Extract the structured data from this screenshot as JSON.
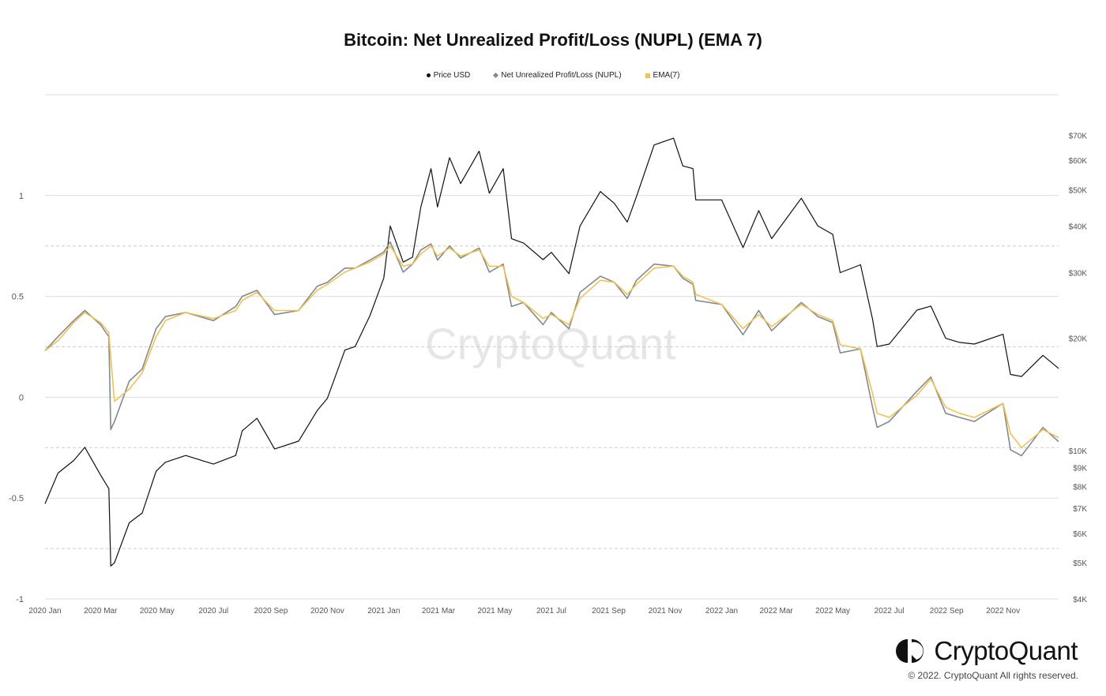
{
  "brand": {
    "name": "CryptoQuant",
    "copyright": "© 2022. CryptoQuant All rights reserved.",
    "watermark": "CryptoQuant"
  },
  "colors": {
    "price": "#111111",
    "nupl": "#7f8a96",
    "ema": "#f2c14e",
    "grid": "#cccccc"
  },
  "chart_data": {
    "type": "line",
    "title": "Bitcoin: Net Unrealized Profit/Loss (NUPL) (EMA 7)",
    "legend_placement": "top-center",
    "grid": true,
    "x_ticks": [
      "2020 Jan",
      "2020 Mar",
      "2020 May",
      "2020 Jul",
      "2020 Sep",
      "2020 Nov",
      "2021 Jan",
      "2021 Mar",
      "2021 May",
      "2021 Jul",
      "2021 Sep",
      "2021 Nov",
      "2022 Jan",
      "2022 Mar",
      "2022 May",
      "2022 Jul",
      "2022 Sep",
      "2022 Nov"
    ],
    "x_range": [
      "2020-01-01",
      "2022-12-31"
    ],
    "y_left": {
      "min": -1,
      "max": 1.5,
      "ticks": [
        -1,
        -0.5,
        0,
        0.5,
        1
      ],
      "tick_labels": [
        "-1",
        "-0.5",
        "0",
        "0.5",
        "1"
      ]
    },
    "y_right": {
      "scale": "log",
      "min": 4000,
      "max": 90000,
      "ticks": [
        4000,
        5000,
        6000,
        7000,
        8000,
        9000,
        10000,
        20000,
        30000,
        40000,
        50000,
        60000,
        70000
      ],
      "tick_labels": [
        "$4K",
        "$5K",
        "$6K",
        "$7K",
        "$8K",
        "$9K",
        "$10K",
        "$20K",
        "$30K",
        "$40K",
        "$50K",
        "$60K",
        "$70K"
      ]
    },
    "series": [
      {
        "name": "Price USD",
        "axis": "right",
        "color": "#111111",
        "points": [
          [
            "2020-01-01",
            7200
          ],
          [
            "2020-01-15",
            8700
          ],
          [
            "2020-02-01",
            9400
          ],
          [
            "2020-02-13",
            10200
          ],
          [
            "2020-03-01",
            8600
          ],
          [
            "2020-03-10",
            7900
          ],
          [
            "2020-03-12",
            4900
          ],
          [
            "2020-03-16",
            5000
          ],
          [
            "2020-04-01",
            6400
          ],
          [
            "2020-04-15",
            6800
          ],
          [
            "2020-04-30",
            8800
          ],
          [
            "2020-05-10",
            9300
          ],
          [
            "2020-06-01",
            9700
          ],
          [
            "2020-07-01",
            9200
          ],
          [
            "2020-07-25",
            9700
          ],
          [
            "2020-08-01",
            11300
          ],
          [
            "2020-08-17",
            12200
          ],
          [
            "2020-09-05",
            10100
          ],
          [
            "2020-10-01",
            10600
          ],
          [
            "2020-10-21",
            12800
          ],
          [
            "2020-11-01",
            13800
          ],
          [
            "2020-11-20",
            18600
          ],
          [
            "2020-12-01",
            19000
          ],
          [
            "2020-12-17",
            23000
          ],
          [
            "2021-01-01",
            29000
          ],
          [
            "2021-01-08",
            40000
          ],
          [
            "2021-01-22",
            32000
          ],
          [
            "2021-02-01",
            33000
          ],
          [
            "2021-02-10",
            45000
          ],
          [
            "2021-02-21",
            57000
          ],
          [
            "2021-02-28",
            45000
          ],
          [
            "2021-03-13",
            61000
          ],
          [
            "2021-03-25",
            52000
          ],
          [
            "2021-04-14",
            63500
          ],
          [
            "2021-04-25",
            49000
          ],
          [
            "2021-05-10",
            57000
          ],
          [
            "2021-05-19",
            37000
          ],
          [
            "2021-06-01",
            36000
          ],
          [
            "2021-06-22",
            32500
          ],
          [
            "2021-07-01",
            34000
          ],
          [
            "2021-07-20",
            29800
          ],
          [
            "2021-08-01",
            40000
          ],
          [
            "2021-08-23",
            49500
          ],
          [
            "2021-09-07",
            46000
          ],
          [
            "2021-09-21",
            41000
          ],
          [
            "2021-10-01",
            48000
          ],
          [
            "2021-10-20",
            66000
          ],
          [
            "2021-11-10",
            68800
          ],
          [
            "2021-11-20",
            58000
          ],
          [
            "2021-12-01",
            57000
          ],
          [
            "2021-12-04",
            47000
          ],
          [
            "2022-01-01",
            47000
          ],
          [
            "2022-01-24",
            35000
          ],
          [
            "2022-02-10",
            44000
          ],
          [
            "2022-02-24",
            37000
          ],
          [
            "2022-03-28",
            47500
          ],
          [
            "2022-04-15",
            40000
          ],
          [
            "2022-05-01",
            38000
          ],
          [
            "2022-05-09",
            30000
          ],
          [
            "2022-05-31",
            31500
          ],
          [
            "2022-06-13",
            22500
          ],
          [
            "2022-06-18",
            19000
          ],
          [
            "2022-07-01",
            19300
          ],
          [
            "2022-07-31",
            23800
          ],
          [
            "2022-08-15",
            24400
          ],
          [
            "2022-08-31",
            20000
          ],
          [
            "2022-09-15",
            19500
          ],
          [
            "2022-10-01",
            19300
          ],
          [
            "2022-11-01",
            20500
          ],
          [
            "2022-11-09",
            16000
          ],
          [
            "2022-11-21",
            15800
          ],
          [
            "2022-12-14",
            18000
          ],
          [
            "2022-12-31",
            16600
          ]
        ]
      },
      {
        "name": "Net Unrealized Profit/Loss (NUPL)",
        "axis": "left",
        "color": "#7f8a96",
        "points": [
          [
            "2020-01-01",
            0.23
          ],
          [
            "2020-01-15",
            0.3
          ],
          [
            "2020-02-01",
            0.38
          ],
          [
            "2020-02-13",
            0.43
          ],
          [
            "2020-03-01",
            0.36
          ],
          [
            "2020-03-10",
            0.3
          ],
          [
            "2020-03-12",
            -0.16
          ],
          [
            "2020-03-16",
            -0.12
          ],
          [
            "2020-04-01",
            0.08
          ],
          [
            "2020-04-15",
            0.14
          ],
          [
            "2020-04-30",
            0.34
          ],
          [
            "2020-05-10",
            0.4
          ],
          [
            "2020-06-01",
            0.42
          ],
          [
            "2020-07-01",
            0.38
          ],
          [
            "2020-07-25",
            0.45
          ],
          [
            "2020-08-01",
            0.5
          ],
          [
            "2020-08-17",
            0.53
          ],
          [
            "2020-09-05",
            0.41
          ],
          [
            "2020-10-01",
            0.43
          ],
          [
            "2020-10-21",
            0.55
          ],
          [
            "2020-11-01",
            0.57
          ],
          [
            "2020-11-20",
            0.64
          ],
          [
            "2020-12-01",
            0.64
          ],
          [
            "2020-12-17",
            0.68
          ],
          [
            "2021-01-01",
            0.72
          ],
          [
            "2021-01-08",
            0.77
          ],
          [
            "2021-01-22",
            0.62
          ],
          [
            "2021-02-01",
            0.66
          ],
          [
            "2021-02-10",
            0.73
          ],
          [
            "2021-02-21",
            0.76
          ],
          [
            "2021-02-28",
            0.68
          ],
          [
            "2021-03-13",
            0.75
          ],
          [
            "2021-03-25",
            0.69
          ],
          [
            "2021-04-14",
            0.74
          ],
          [
            "2021-04-25",
            0.62
          ],
          [
            "2021-05-10",
            0.66
          ],
          [
            "2021-05-19",
            0.45
          ],
          [
            "2021-06-01",
            0.47
          ],
          [
            "2021-06-22",
            0.36
          ],
          [
            "2021-07-01",
            0.42
          ],
          [
            "2021-07-20",
            0.34
          ],
          [
            "2021-08-01",
            0.52
          ],
          [
            "2021-08-23",
            0.6
          ],
          [
            "2021-09-07",
            0.57
          ],
          [
            "2021-09-21",
            0.49
          ],
          [
            "2021-10-01",
            0.58
          ],
          [
            "2021-10-20",
            0.66
          ],
          [
            "2021-11-10",
            0.65
          ],
          [
            "2021-11-20",
            0.59
          ],
          [
            "2021-12-01",
            0.56
          ],
          [
            "2021-12-04",
            0.48
          ],
          [
            "2022-01-01",
            0.46
          ],
          [
            "2022-01-24",
            0.31
          ],
          [
            "2022-02-10",
            0.43
          ],
          [
            "2022-02-24",
            0.33
          ],
          [
            "2022-03-28",
            0.47
          ],
          [
            "2022-04-15",
            0.4
          ],
          [
            "2022-05-01",
            0.37
          ],
          [
            "2022-05-09",
            0.22
          ],
          [
            "2022-05-31",
            0.24
          ],
          [
            "2022-06-13",
            -0.05
          ],
          [
            "2022-06-18",
            -0.15
          ],
          [
            "2022-07-01",
            -0.12
          ],
          [
            "2022-07-31",
            0.03
          ],
          [
            "2022-08-15",
            0.1
          ],
          [
            "2022-08-31",
            -0.08
          ],
          [
            "2022-09-15",
            -0.1
          ],
          [
            "2022-10-01",
            -0.12
          ],
          [
            "2022-11-01",
            -0.03
          ],
          [
            "2022-11-09",
            -0.26
          ],
          [
            "2022-11-21",
            -0.29
          ],
          [
            "2022-12-14",
            -0.15
          ],
          [
            "2022-12-31",
            -0.22
          ]
        ]
      },
      {
        "name": "EMA(7)",
        "axis": "left",
        "color": "#f2c14e",
        "points": [
          [
            "2020-01-01",
            0.23
          ],
          [
            "2020-01-15",
            0.28
          ],
          [
            "2020-02-01",
            0.37
          ],
          [
            "2020-02-13",
            0.42
          ],
          [
            "2020-03-01",
            0.37
          ],
          [
            "2020-03-10",
            0.32
          ],
          [
            "2020-03-12",
            0.2
          ],
          [
            "2020-03-16",
            -0.02
          ],
          [
            "2020-04-01",
            0.04
          ],
          [
            "2020-04-15",
            0.12
          ],
          [
            "2020-04-30",
            0.3
          ],
          [
            "2020-05-10",
            0.38
          ],
          [
            "2020-06-01",
            0.42
          ],
          [
            "2020-07-01",
            0.39
          ],
          [
            "2020-07-25",
            0.43
          ],
          [
            "2020-08-01",
            0.48
          ],
          [
            "2020-08-17",
            0.52
          ],
          [
            "2020-09-05",
            0.43
          ],
          [
            "2020-10-01",
            0.43
          ],
          [
            "2020-10-21",
            0.53
          ],
          [
            "2020-11-01",
            0.56
          ],
          [
            "2020-11-20",
            0.62
          ],
          [
            "2020-12-01",
            0.64
          ],
          [
            "2020-12-17",
            0.67
          ],
          [
            "2021-01-01",
            0.71
          ],
          [
            "2021-01-08",
            0.75
          ],
          [
            "2021-01-22",
            0.65
          ],
          [
            "2021-02-01",
            0.66
          ],
          [
            "2021-02-10",
            0.71
          ],
          [
            "2021-02-21",
            0.75
          ],
          [
            "2021-02-28",
            0.7
          ],
          [
            "2021-03-13",
            0.74
          ],
          [
            "2021-03-25",
            0.7
          ],
          [
            "2021-04-14",
            0.73
          ],
          [
            "2021-04-25",
            0.65
          ],
          [
            "2021-05-10",
            0.65
          ],
          [
            "2021-05-19",
            0.5
          ],
          [
            "2021-06-01",
            0.47
          ],
          [
            "2021-06-22",
            0.39
          ],
          [
            "2021-07-01",
            0.41
          ],
          [
            "2021-07-20",
            0.36
          ],
          [
            "2021-08-01",
            0.49
          ],
          [
            "2021-08-23",
            0.58
          ],
          [
            "2021-09-07",
            0.57
          ],
          [
            "2021-09-21",
            0.51
          ],
          [
            "2021-10-01",
            0.56
          ],
          [
            "2021-10-20",
            0.64
          ],
          [
            "2021-11-10",
            0.65
          ],
          [
            "2021-11-20",
            0.6
          ],
          [
            "2021-12-01",
            0.57
          ],
          [
            "2021-12-04",
            0.51
          ],
          [
            "2022-01-01",
            0.46
          ],
          [
            "2022-01-24",
            0.34
          ],
          [
            "2022-02-10",
            0.41
          ],
          [
            "2022-02-24",
            0.35
          ],
          [
            "2022-03-28",
            0.46
          ],
          [
            "2022-04-15",
            0.41
          ],
          [
            "2022-05-01",
            0.38
          ],
          [
            "2022-05-09",
            0.26
          ],
          [
            "2022-05-31",
            0.24
          ],
          [
            "2022-06-13",
            0.02
          ],
          [
            "2022-06-18",
            -0.08
          ],
          [
            "2022-07-01",
            -0.1
          ],
          [
            "2022-07-31",
            0.01
          ],
          [
            "2022-08-15",
            0.09
          ],
          [
            "2022-08-31",
            -0.05
          ],
          [
            "2022-09-15",
            -0.08
          ],
          [
            "2022-10-01",
            -0.1
          ],
          [
            "2022-11-01",
            -0.03
          ],
          [
            "2022-11-09",
            -0.18
          ],
          [
            "2022-11-21",
            -0.25
          ],
          [
            "2022-12-14",
            -0.16
          ],
          [
            "2022-12-31",
            -0.2
          ]
        ]
      }
    ]
  }
}
